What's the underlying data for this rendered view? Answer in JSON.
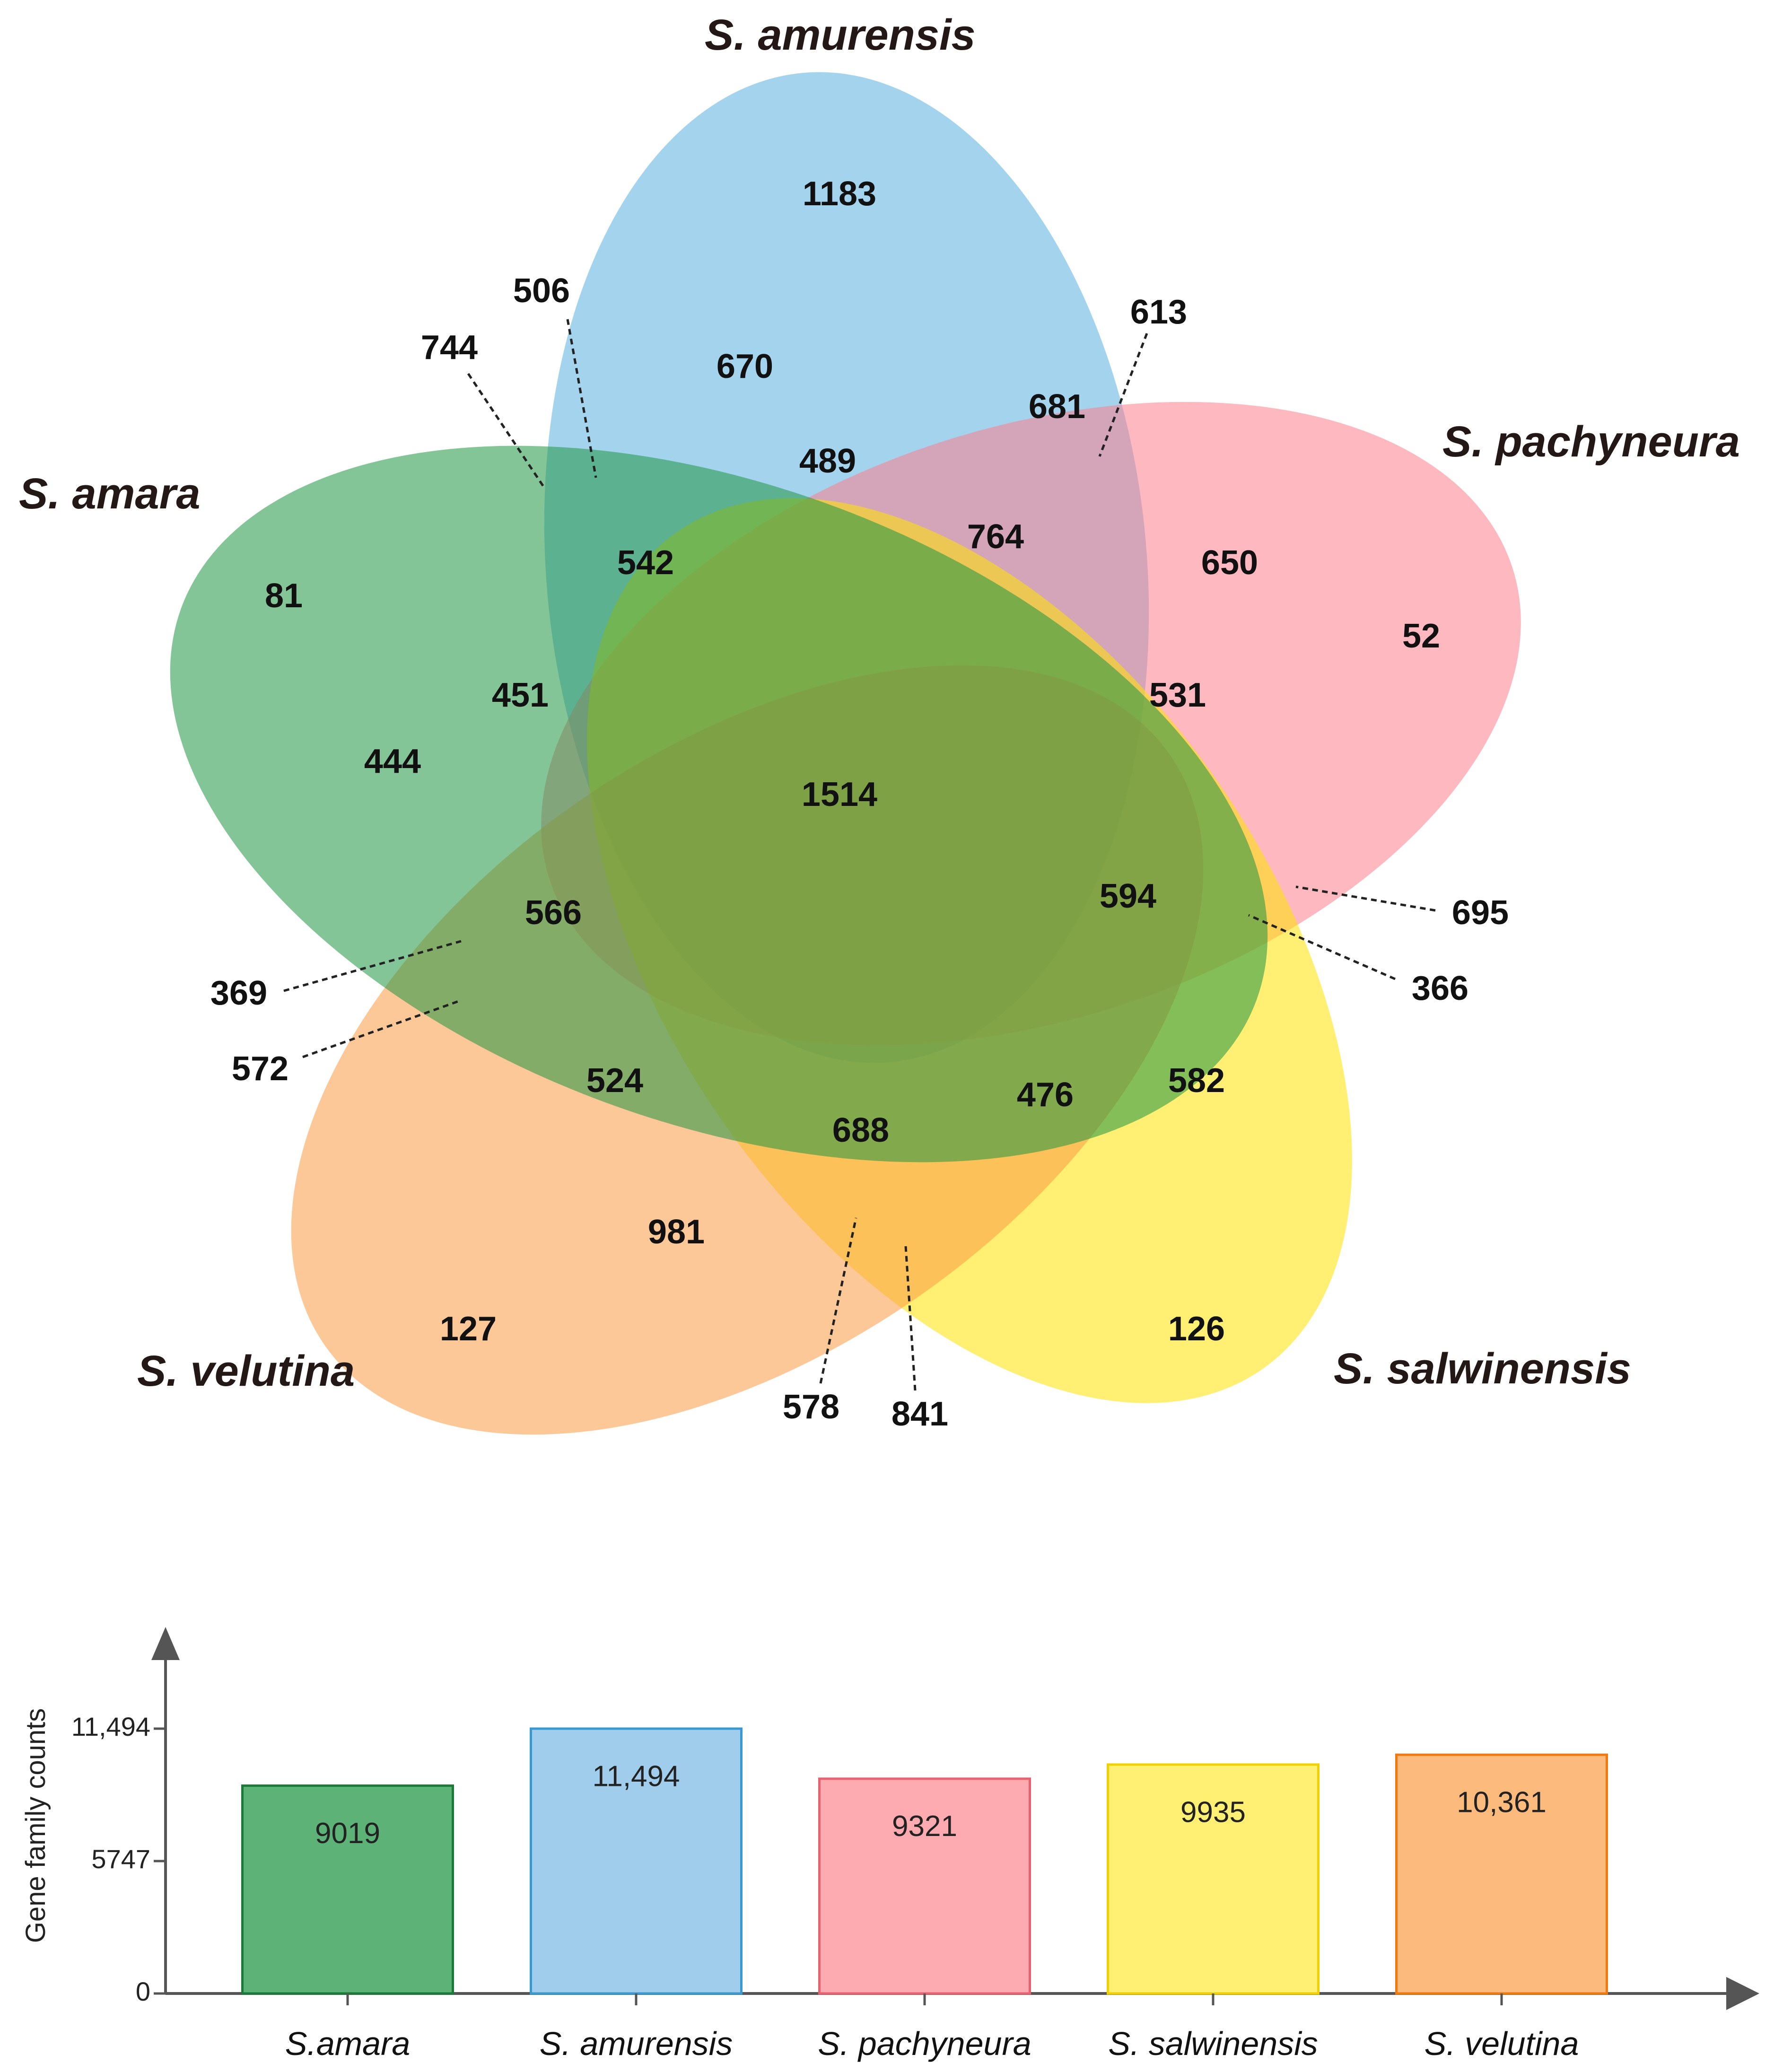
{
  "chart_data": [
    {
      "type": "venn",
      "sets": [
        {
          "name": "S. amurensis",
          "color": "#5aaee0",
          "unique": 1183
        },
        {
          "name": "S. pachyneura",
          "color": "#fc7e8c",
          "unique": 52
        },
        {
          "name": "S. salwinensis",
          "color": "#ffe300",
          "unique": 126
        },
        {
          "name": "S. velutina",
          "color": "#fb9b43",
          "unique": 127
        },
        {
          "name": "S. amara",
          "color": "#1f9544",
          "unique": 81
        }
      ],
      "core": 1514,
      "regions": [
        {
          "value": 1183,
          "callout": false
        },
        {
          "value": 670,
          "callout": false
        },
        {
          "value": 489,
          "callout": false
        },
        {
          "value": 681,
          "callout": false
        },
        {
          "value": 613,
          "callout": true
        },
        {
          "value": 506,
          "callout": true
        },
        {
          "value": 744,
          "callout": true
        },
        {
          "value": 542,
          "callout": false
        },
        {
          "value": 764,
          "callout": false
        },
        {
          "value": 650,
          "callout": false
        },
        {
          "value": 52,
          "callout": false
        },
        {
          "value": 81,
          "callout": false
        },
        {
          "value": 451,
          "callout": false
        },
        {
          "value": 531,
          "callout": false
        },
        {
          "value": 444,
          "callout": false
        },
        {
          "value": 1514,
          "callout": false
        },
        {
          "value": 566,
          "callout": false
        },
        {
          "value": 594,
          "callout": false
        },
        {
          "value": 695,
          "callout": true
        },
        {
          "value": 369,
          "callout": true
        },
        {
          "value": 366,
          "callout": true
        },
        {
          "value": 572,
          "callout": true
        },
        {
          "value": 524,
          "callout": false
        },
        {
          "value": 582,
          "callout": false
        },
        {
          "value": 476,
          "callout": false
        },
        {
          "value": 688,
          "callout": false
        },
        {
          "value": 981,
          "callout": false
        },
        {
          "value": 127,
          "callout": false
        },
        {
          "value": 126,
          "callout": false
        },
        {
          "value": 578,
          "callout": true
        },
        {
          "value": 841,
          "callout": true
        }
      ]
    },
    {
      "type": "bar",
      "categories": [
        "S.amara",
        "S. amurensis",
        "S. pachyneura",
        "S. salwinensis",
        "S. velutina"
      ],
      "values": [
        9019,
        11494,
        9321,
        9935,
        10361
      ],
      "value_labels": [
        "9019",
        "11,494",
        "9321",
        "9935",
        "10,361"
      ],
      "fill_colors": [
        "#5db377",
        "#a0cdeb",
        "#fdaab1",
        "#fff073",
        "#fdba7d"
      ],
      "stroke_colors": [
        "#1b7a37",
        "#3a99d0",
        "#e7626f",
        "#f0d000",
        "#f07a10"
      ],
      "ylabel": "Gene family counts",
      "yticks": [
        0,
        5747,
        11494
      ],
      "ytick_labels": [
        "0",
        "5747",
        "11,494"
      ],
      "ylim": [
        0,
        11494
      ],
      "grid": false
    }
  ]
}
